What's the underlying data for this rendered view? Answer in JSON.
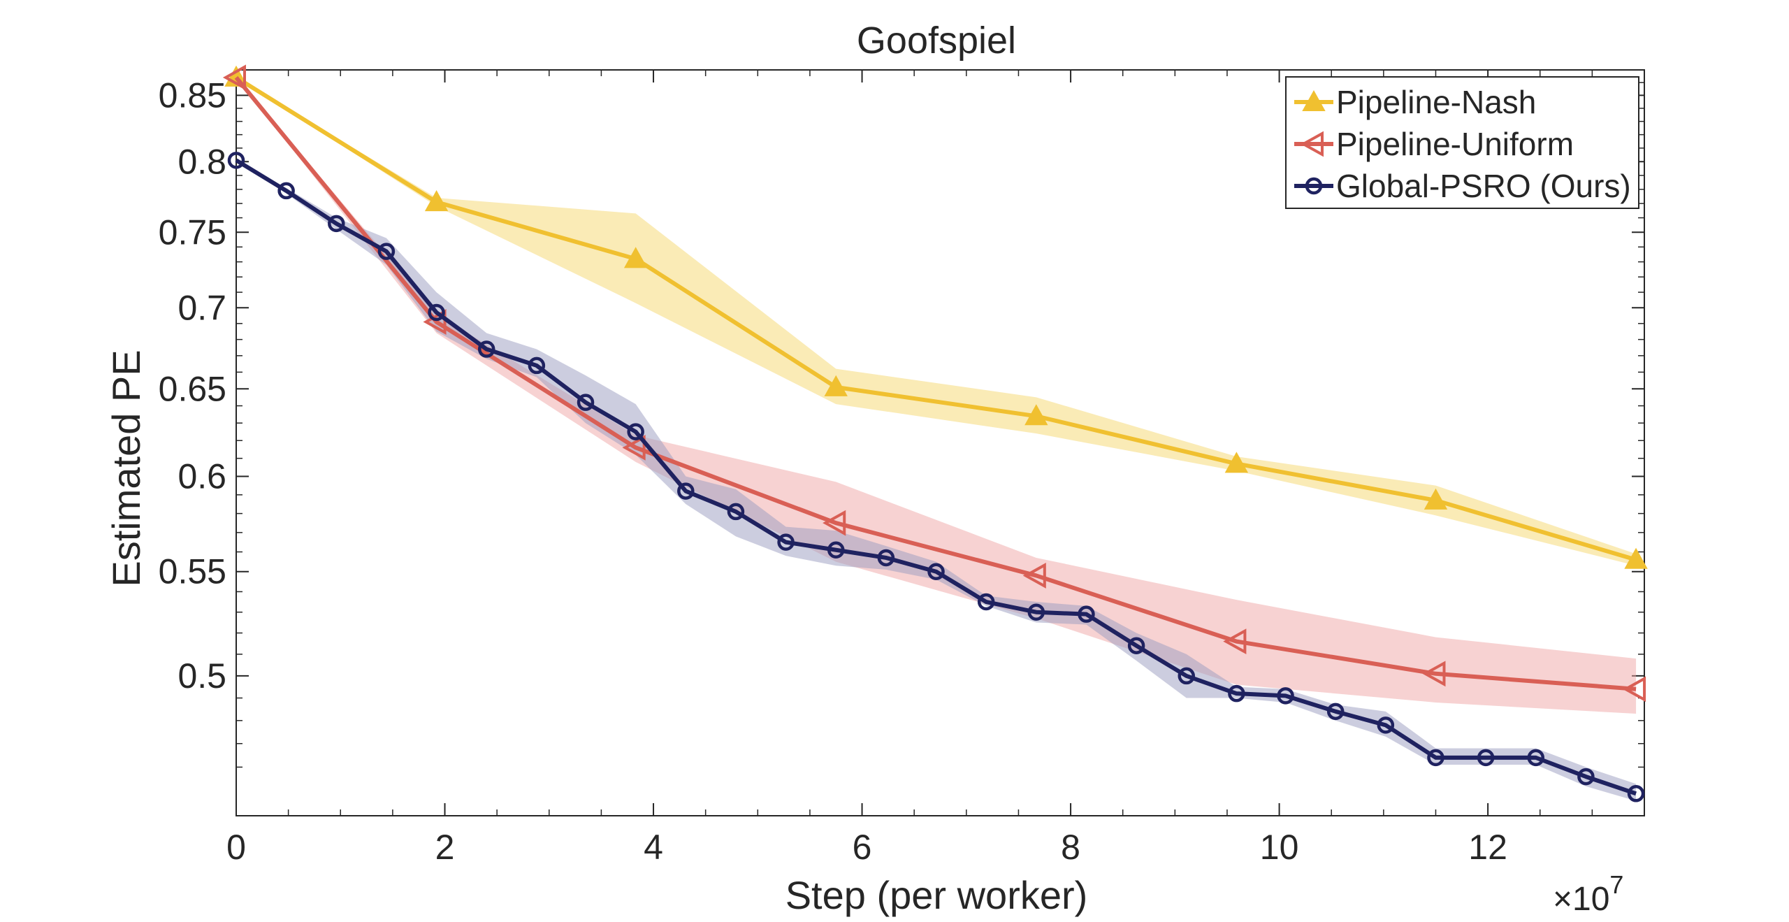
{
  "chart_data": {
    "type": "line",
    "title": "Goofspiel",
    "xlabel": "Step (per worker)",
    "ylabel": "Estimated PE",
    "x_exponent": "×10",
    "x_exponent_power": "7",
    "x_scale": 10000000,
    "xlim": [
      0,
      135000000
    ],
    "ylim": [
      0.44,
      0.87
    ],
    "y_scale": "log",
    "x_ticks": [
      0,
      20000000,
      40000000,
      60000000,
      80000000,
      100000000,
      120000000
    ],
    "x_tick_labels": [
      "0",
      "2",
      "4",
      "6",
      "8",
      "10",
      "12"
    ],
    "y_ticks": [
      0.5,
      0.55,
      0.6,
      0.65,
      0.7,
      0.75,
      0.8,
      0.85
    ],
    "y_tick_labels": [
      "0.5",
      "0.55",
      "0.6",
      "0.65",
      "0.7",
      "0.75",
      "0.8",
      "0.85"
    ],
    "grid": false,
    "legend_position": "top-right",
    "series": [
      {
        "name": "Pipeline-Nash",
        "color": "#f0c030",
        "band_color": "#f5d76e",
        "marker": "triangle-up",
        "x": [
          0,
          19200000,
          38300000,
          57500000,
          76700000,
          95900000,
          115000000,
          134200000
        ],
        "values": [
          0.864,
          0.771,
          0.732,
          0.651,
          0.634,
          0.607,
          0.587,
          0.556
        ],
        "lower": [
          0.864,
          0.768,
          0.703,
          0.641,
          0.624,
          0.603,
          0.579,
          0.553
        ],
        "upper": [
          0.864,
          0.774,
          0.763,
          0.662,
          0.645,
          0.611,
          0.595,
          0.559
        ]
      },
      {
        "name": "Pipeline-Uniform",
        "color": "#d95f55",
        "band_color": "#f0a6a6",
        "marker": "triangle-left",
        "x": [
          0,
          19200000,
          38300000,
          57500000,
          76700000,
          95900000,
          115000000,
          134200000
        ],
        "values": [
          0.864,
          0.691,
          0.616,
          0.575,
          0.548,
          0.516,
          0.501,
          0.494
        ],
        "lower": [
          0.864,
          0.684,
          0.608,
          0.555,
          0.527,
          0.496,
          0.488,
          0.483
        ],
        "upper": [
          0.864,
          0.696,
          0.623,
          0.597,
          0.557,
          0.536,
          0.518,
          0.508
        ]
      },
      {
        "name": "Global-PSRO (Ours)",
        "color": "#1f2260",
        "band_color": "#9a9cc0",
        "marker": "circle",
        "x": [
          0,
          4800000,
          9600000,
          14400000,
          19200000,
          24000000,
          28800000,
          33500000,
          38300000,
          43100000,
          47900000,
          52700000,
          57500000,
          62300000,
          67100000,
          71900000,
          76700000,
          81500000,
          86300000,
          91100000,
          95900000,
          100600000,
          105400000,
          110200000,
          115000000,
          119800000,
          124600000,
          129400000,
          134200000
        ],
        "values": [
          0.801,
          0.779,
          0.756,
          0.737,
          0.697,
          0.674,
          0.664,
          0.642,
          0.625,
          0.592,
          0.581,
          0.565,
          0.561,
          0.557,
          0.55,
          0.535,
          0.53,
          0.529,
          0.514,
          0.5,
          0.492,
          0.491,
          0.484,
          0.478,
          0.464,
          0.464,
          0.464,
          0.456,
          0.449
        ],
        "lower": [
          0.801,
          0.777,
          0.752,
          0.728,
          0.685,
          0.668,
          0.657,
          0.63,
          0.612,
          0.585,
          0.568,
          0.558,
          0.553,
          0.551,
          0.546,
          0.533,
          0.525,
          0.524,
          0.507,
          0.49,
          0.49,
          0.488,
          0.48,
          0.473,
          0.461,
          0.461,
          0.461,
          0.452,
          0.446
        ],
        "upper": [
          0.801,
          0.781,
          0.76,
          0.746,
          0.71,
          0.684,
          0.674,
          0.658,
          0.641,
          0.6,
          0.593,
          0.573,
          0.571,
          0.563,
          0.555,
          0.538,
          0.535,
          0.533,
          0.52,
          0.51,
          0.495,
          0.494,
          0.487,
          0.484,
          0.468,
          0.468,
          0.468,
          0.46,
          0.453
        ]
      }
    ]
  }
}
